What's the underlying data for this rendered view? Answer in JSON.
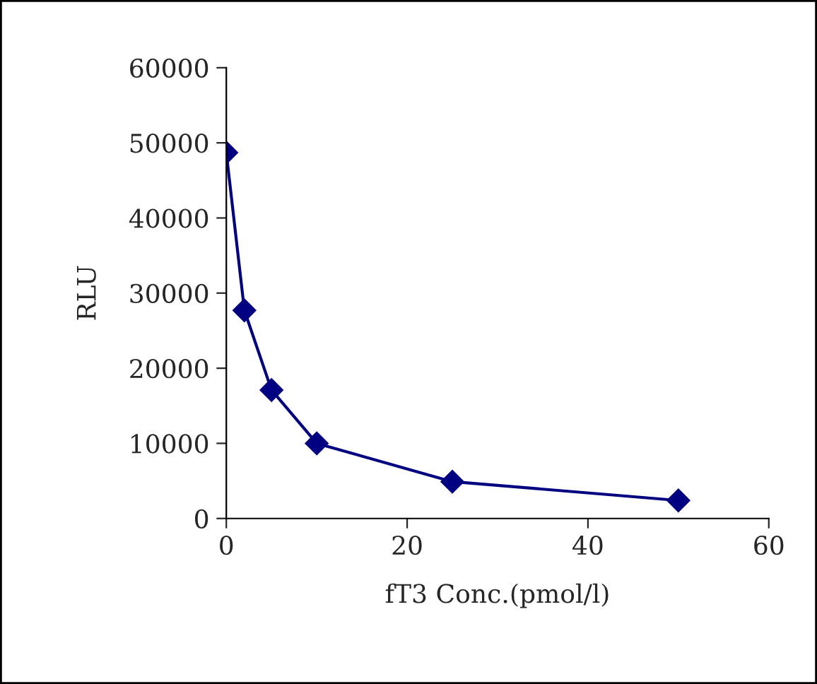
{
  "chart_data": {
    "type": "line",
    "xlabel": "fT3 Conc.(pmol/l)",
    "ylabel": "RLU",
    "x": [
      0,
      2,
      5,
      10,
      25,
      50
    ],
    "series": [
      {
        "color": "#000080",
        "values": [
          48700,
          27700,
          17100,
          10000,
          4900,
          2400
        ]
      }
    ],
    "xlim": [
      0,
      60
    ],
    "xticks": [
      0,
      20,
      40,
      60
    ],
    "ylim": [
      0,
      60000
    ],
    "yticks": [
      0,
      10000,
      20000,
      30000,
      40000,
      50000,
      60000
    ],
    "marker": "diamond",
    "line_style": "solid",
    "grid": false,
    "legend": false
  }
}
